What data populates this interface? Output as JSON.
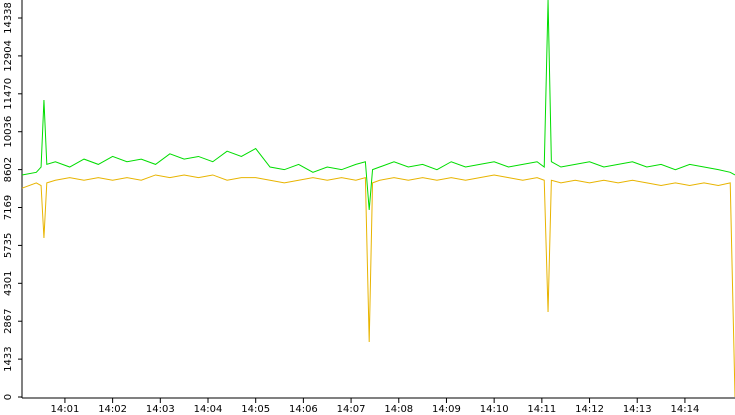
{
  "chart_data": {
    "type": "line",
    "x": [
      0.1,
      0.4,
      0.5,
      0.56,
      0.62,
      0.8,
      1.1,
      1.4,
      1.7,
      2.0,
      2.3,
      2.6,
      2.9,
      3.2,
      3.5,
      3.8,
      4.1,
      4.4,
      4.7,
      5.0,
      5.3,
      5.6,
      5.9,
      6.2,
      6.5,
      6.8,
      7.1,
      7.3,
      7.38,
      7.45,
      7.6,
      7.9,
      8.2,
      8.5,
      8.8,
      9.1,
      9.4,
      9.7,
      10.0,
      10.3,
      10.6,
      10.9,
      11.05,
      11.13,
      11.2,
      11.4,
      11.7,
      12.0,
      12.3,
      12.6,
      12.9,
      13.2,
      13.5,
      13.8,
      14.1,
      14.4,
      14.7,
      14.95,
      15.05
    ],
    "series": [
      {
        "color": "#00dd00",
        "values": [
          8400,
          8500,
          8700,
          11236,
          8800,
          8900,
          8700,
          9000,
          8800,
          9100,
          8900,
          9000,
          8800,
          9200,
          9000,
          9100,
          8900,
          9300,
          9100,
          9400,
          8700,
          8600,
          8800,
          8500,
          8700,
          8600,
          8800,
          8900,
          7074,
          8600,
          8700,
          8900,
          8700,
          8800,
          8600,
          8900,
          8700,
          8800,
          8900,
          8700,
          8800,
          8900,
          8700,
          15019,
          8900,
          8700,
          8800,
          8900,
          8700,
          8800,
          8900,
          8700,
          8800,
          8600,
          8800,
          8700,
          8600,
          8500,
          8400
        ]
      },
      {
        "color": "#e8b400",
        "values": [
          7900,
          8100,
          8000,
          6015,
          8100,
          8200,
          8300,
          8200,
          8300,
          8200,
          8300,
          8200,
          8400,
          8300,
          8400,
          8300,
          8400,
          8200,
          8300,
          8300,
          8200,
          8100,
          8200,
          8300,
          8200,
          8300,
          8200,
          8300,
          2081,
          8100,
          8200,
          8300,
          8200,
          8300,
          8200,
          8300,
          8200,
          8300,
          8400,
          8300,
          8200,
          8300,
          8200,
          3216,
          8200,
          8100,
          8200,
          8100,
          8200,
          8100,
          8200,
          8100,
          8000,
          8100,
          8000,
          8100,
          8000,
          8100,
          0
        ]
      }
    ],
    "xlim": [
      0.1,
      15.05
    ],
    "xticks": [
      {
        "value": 1,
        "label": "14:01"
      },
      {
        "value": 2,
        "label": "14:02"
      },
      {
        "value": 3,
        "label": "14:03"
      },
      {
        "value": 4,
        "label": "14:04"
      },
      {
        "value": 5,
        "label": "14:05"
      },
      {
        "value": 6,
        "label": "14:06"
      },
      {
        "value": 7,
        "label": "14:07"
      },
      {
        "value": 8,
        "label": "14:08"
      },
      {
        "value": 9,
        "label": "14:09"
      },
      {
        "value": 10,
        "label": "14:10"
      },
      {
        "value": 11,
        "label": "14:11"
      },
      {
        "value": 12,
        "label": "14:12"
      },
      {
        "value": 13,
        "label": "14:13"
      },
      {
        "value": 14,
        "label": "14:14"
      }
    ],
    "ylim": [
      0,
      15019
    ],
    "yticks": [
      0,
      1433,
      2867,
      4301,
      5735,
      7169,
      8602,
      10036,
      11470,
      12904,
      14338
    ],
    "axis_color": "#000000"
  }
}
